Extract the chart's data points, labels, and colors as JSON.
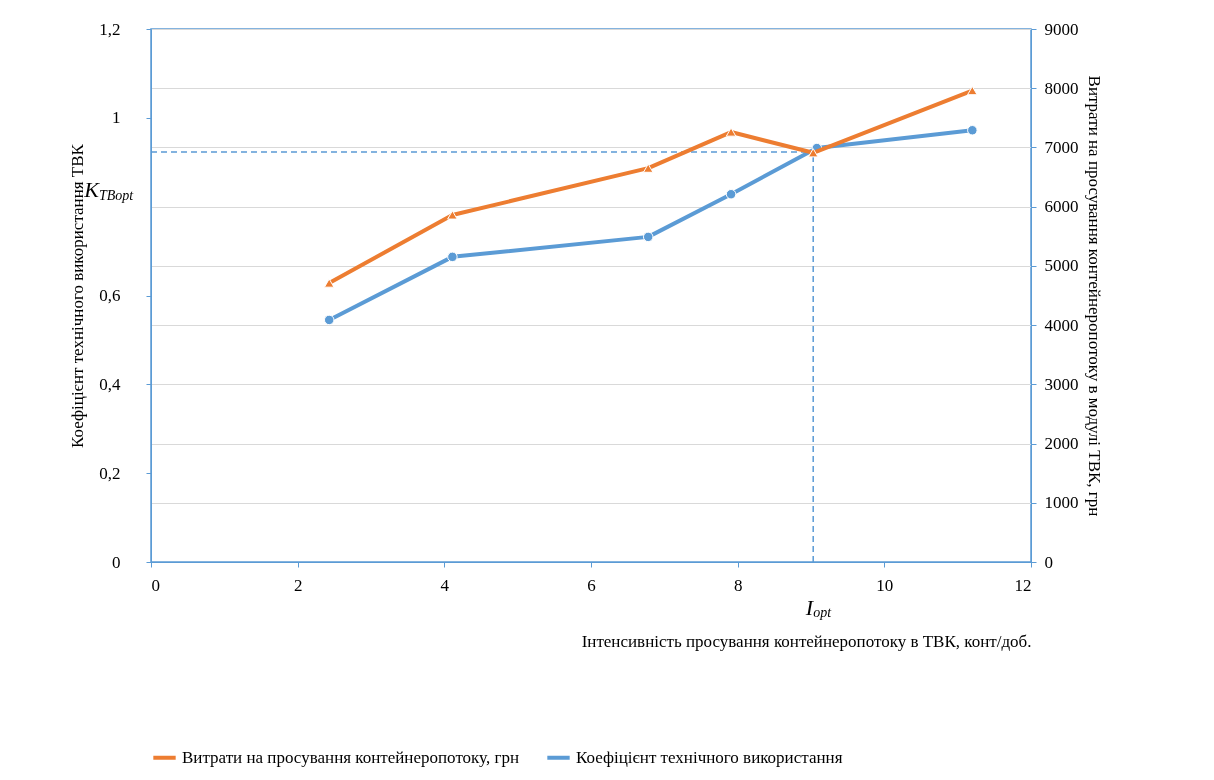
{
  "chart_data": {
    "type": "line",
    "ylabel": "Коефіцієнт технічного використання ТВК",
    "y2label": "Витрати на просування контейнеропотоку в модулі ТВК, грн",
    "xlabel": "Інтенсивність просування контейнеропотоку в ТВК, конт/доб.",
    "xlim": [
      0,
      12
    ],
    "xticks": [
      0,
      2,
      4,
      6,
      8,
      10,
      12
    ],
    "ylim": [
      0,
      1.2
    ],
    "yticks": [
      0,
      {
        "value": 0.2,
        "label": "0,2"
      },
      {
        "value": 0.4,
        "label": "0,4"
      },
      {
        "value": 0.6,
        "label": "0,6"
      },
      1,
      {
        "value": 1.2,
        "label": "1,2"
      }
    ],
    "y2lim": [
      0,
      9000
    ],
    "y2ticks": [
      0,
      1000,
      2000,
      3000,
      4000,
      5000,
      6000,
      7000,
      8000,
      9000
    ],
    "grid": "y",
    "legend": "bottom",
    "series": [
      {
        "name": "Витрати на просування контейнеропотоку, грн",
        "color": "#ed7d31",
        "axis": "y2",
        "marker": "triangle",
        "x": [
          2.43,
          4.11,
          6.78,
          7.91,
          9.03,
          11.2
        ],
        "values": [
          4710,
          5860,
          6650,
          7260,
          6910,
          7960
        ]
      },
      {
        "name": "Коефіцієнт технічного використання",
        "color": "#5b9bd5",
        "axis": "y",
        "marker": "circle",
        "x": [
          2.43,
          4.11,
          6.78,
          7.91,
          9.08,
          11.2
        ],
        "values": [
          0.545,
          0.687,
          0.732,
          0.828,
          0.932,
          0.972
        ]
      }
    ],
    "ref_lines": [
      {
        "axis": "y",
        "value": 0.923,
        "label": "K$_{ТВopt}$",
        "color": "#5b9bd5",
        "line_style": "dashed"
      },
      {
        "axis": "x",
        "value": 9.03,
        "label": "I$_{opt}$",
        "color": "#5b9bd5",
        "line_style": "dashed"
      }
    ]
  }
}
